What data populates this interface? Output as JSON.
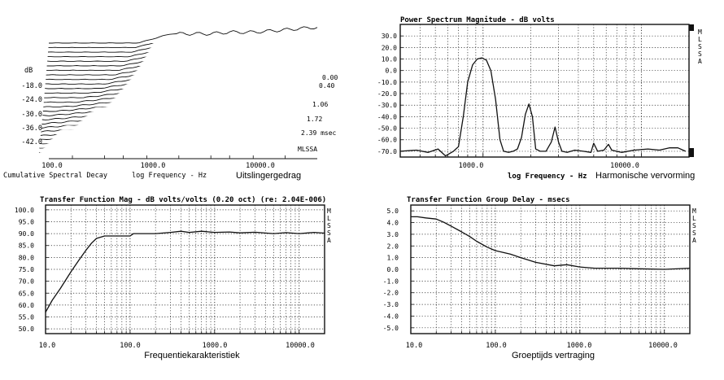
{
  "panels": {
    "decay": {
      "y_unit": "dB",
      "y_ticks": [
        "-18.0",
        "-24.0",
        "-30.0",
        "-36.0",
        "-42.0"
      ],
      "x_ticks": [
        "100.0",
        "1000.0",
        "10000.0"
      ],
      "title_left": "Cumulative Spectral Decay",
      "xlabel": "log Frequency - Hz",
      "caption": "Uitslingergedrag",
      "time_labels": [
        "0.00",
        "0.40",
        "1.06",
        "1.72",
        "2.39 msec"
      ],
      "vendor": "MLSSA"
    },
    "spectrum": {
      "title": "Power Spectrum Magnitude - dB volts",
      "y_ticks": [
        "30.0",
        "20.0",
        "10.0",
        "0.0",
        "-10.0",
        "-20.0",
        "-30.0",
        "-40.0",
        "-50.0",
        "-60.0",
        "-70.0"
      ],
      "x_ticks": [
        "1000.0",
        "10000.0"
      ],
      "xlabel": "log Frequency - Hz",
      "caption": "Harmonische vervorming",
      "side_label": "MLSSA"
    },
    "transfer": {
      "title": "Transfer Function Mag - dB volts/volts (0.20 oct) (re: 2.04E-006)",
      "y_ticks": [
        "100.0",
        "95.0",
        "90.0",
        "85.0",
        "80.0",
        "75.0",
        "70.0",
        "65.0",
        "60.0",
        "55.0",
        "50.0"
      ],
      "x_ticks": [
        "10.0",
        "100.0",
        "1000.0",
        "10000.0"
      ],
      "caption": "Frequentiekarakteristiek",
      "side_label": "MLSSA"
    },
    "delay": {
      "title": "Transfer Function Group Delay - msecs",
      "y_ticks": [
        "5.0",
        "4.0",
        "3.0",
        "2.0",
        "1.0",
        "0.0",
        "-1.0",
        "-2.0",
        "-3.0",
        "-4.0",
        "-5.0"
      ],
      "x_ticks": [
        "10.0",
        "100.0",
        "1000.0",
        "10000.0"
      ],
      "caption": "Groeptijds vertraging",
      "side_label": "MLSSA"
    }
  },
  "chart_data": [
    {
      "type": "area",
      "title": "Cumulative Spectral Decay",
      "xlabel": "log Frequency - Hz",
      "ylabel": "dB",
      "x_scale": "log",
      "xlim": [
        60,
        20000
      ],
      "slice_times_ms": [
        0.0,
        0.4,
        1.06,
        1.72,
        2.39
      ],
      "series": [
        {
          "x": [
            60,
            150,
            300,
            600,
            1000,
            2000,
            3000,
            5000,
            8000,
            12000,
            18000
          ],
          "values": [
            -12,
            -10,
            -9,
            -8,
            -8,
            -8,
            -7,
            -7,
            -6,
            -5,
            -4
          ]
        }
      ]
    },
    {
      "type": "line",
      "title": "Power Spectrum Magnitude - dB volts",
      "xlabel": "log Frequency - Hz",
      "x_scale": "log",
      "xlim": [
        300,
        20000
      ],
      "ylim": [
        -75,
        40
      ],
      "series": [
        {
          "x": [
            300,
            380,
            450,
            520,
            580,
            650,
            700,
            750,
            800,
            860,
            920,
            980,
            1050,
            1120,
            1200,
            1280,
            1350,
            1450,
            1550,
            1650,
            1750,
            1850,
            1950,
            2050,
            2150,
            2300,
            2500,
            2700,
            2850,
            3000,
            3150,
            3400,
            3800,
            4300,
            4800,
            5000,
            5300,
            5800,
            6200,
            6500,
            7500,
            9000,
            11000,
            13000,
            15000,
            17000,
            19000
          ],
          "values": [
            -70,
            -69,
            -71,
            -68,
            -74,
            -70,
            -66,
            -40,
            -10,
            5,
            10,
            11,
            9,
            0,
            -25,
            -60,
            -70,
            -71,
            -70,
            -68,
            -58,
            -38,
            -29,
            -40,
            -68,
            -70,
            -70,
            -62,
            -49,
            -62,
            -70,
            -71,
            -69,
            -70,
            -71,
            -63,
            -70,
            -69,
            -64,
            -69,
            -71,
            -69,
            -68,
            -69,
            -67,
            -67,
            -70
          ]
        }
      ]
    },
    {
      "type": "line",
      "title": "Transfer Function Mag - dB volts/volts (0.20 oct) (re: 2.04E-006)",
      "x_scale": "log",
      "xlim": [
        10,
        20000
      ],
      "ylim": [
        48,
        102
      ],
      "series": [
        {
          "x": [
            10,
            12,
            15,
            20,
            25,
            30,
            35,
            40,
            50,
            60,
            80,
            100,
            110,
            150,
            200,
            300,
            400,
            500,
            700,
            1000,
            1500,
            2000,
            3000,
            5000,
            7000,
            10000,
            15000,
            20000
          ],
          "values": [
            57,
            62,
            67,
            74,
            79,
            83,
            86,
            88,
            89,
            89,
            89,
            89,
            90,
            90,
            90,
            90.5,
            91,
            90.5,
            91,
            90.5,
            90.7,
            90.3,
            90.6,
            90,
            90.4,
            90,
            90.5,
            90.2
          ]
        }
      ]
    },
    {
      "type": "line",
      "title": "Transfer Function Group Delay - msecs",
      "x_scale": "log",
      "xlim": [
        10,
        20000
      ],
      "ylim": [
        -5.5,
        5.5
      ],
      "series": [
        {
          "x": [
            10,
            12,
            15,
            20,
            25,
            30,
            40,
            50,
            60,
            80,
            100,
            150,
            200,
            300,
            500,
            700,
            1000,
            1500,
            2000,
            3000,
            5000,
            10000,
            20000
          ],
          "values": [
            4.5,
            4.5,
            4.4,
            4.3,
            4.0,
            3.7,
            3.2,
            2.8,
            2.4,
            1.9,
            1.6,
            1.3,
            1.0,
            0.6,
            0.3,
            0.4,
            0.2,
            0.1,
            0.1,
            0.1,
            0.05,
            0.0,
            0.1
          ]
        }
      ]
    }
  ]
}
